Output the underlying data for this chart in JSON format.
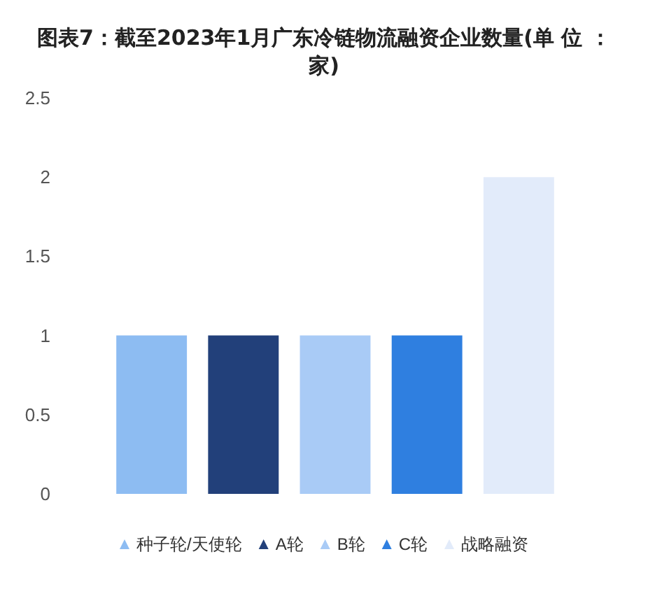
{
  "chart_data": {
    "type": "bar",
    "title": "图表7：截至2023年1月广东冷链物流融资企业数量(单 位 ：家)",
    "categories": [
      null
    ],
    "series": [
      {
        "name": "种子轮/天使轮",
        "color": "#8dbcf2",
        "values": [
          1
        ]
      },
      {
        "name": "A轮",
        "color": "#22407a",
        "values": [
          1
        ]
      },
      {
        "name": "B轮",
        "color": "#a9cbf6",
        "values": [
          1
        ]
      },
      {
        "name": "C轮",
        "color": "#2f7fe0",
        "values": [
          1
        ]
      },
      {
        "name": "战略融资",
        "color": "#e2ebfa",
        "values": [
          2
        ]
      }
    ],
    "ylim": [
      0,
      2.5
    ],
    "yticks": [
      0,
      0.5,
      1,
      1.5,
      2,
      2.5
    ],
    "grid": false,
    "legend": "bottom",
    "marker": "triangle"
  }
}
